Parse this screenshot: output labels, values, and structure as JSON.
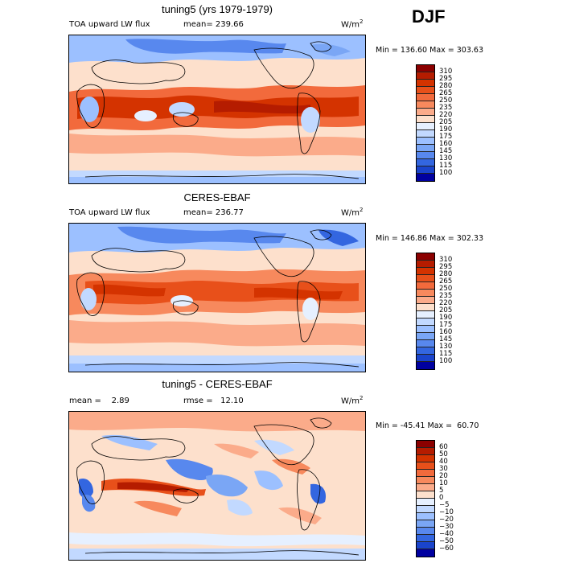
{
  "season": "DJF",
  "panels": [
    {
      "title": "tuning5 (yrs 1979-1979)",
      "variable": "TOA upward LW flux",
      "mean_label": "mean= 239.66",
      "units": "W/m",
      "units_exp": "2",
      "minmax": "Min = 136.60 Max = 303.63",
      "colorbar_labels": [
        "310",
        "295",
        "280",
        "265",
        "250",
        "235",
        "220",
        "205",
        "190",
        "175",
        "160",
        "145",
        "130",
        "115",
        "100"
      ],
      "colors": [
        "#8b0000",
        "#b51c00",
        "#d43300",
        "#e8501a",
        "#f26a3c",
        "#f7895d",
        "#fbab8a",
        "#fde0cc",
        "#e6f0ff",
        "#c2d9ff",
        "#9cc0ff",
        "#7aa6f5",
        "#5888ee",
        "#3366e0",
        "#1a44cc",
        "#0000a0"
      ]
    },
    {
      "title": "CERES-EBAF",
      "variable": "TOA upward LW flux",
      "mean_label": "mean= 236.77",
      "units": "W/m",
      "units_exp": "2",
      "minmax": "Min = 146.86 Max = 302.33",
      "colorbar_labels": [
        "310",
        "295",
        "280",
        "265",
        "250",
        "235",
        "220",
        "205",
        "190",
        "175",
        "160",
        "145",
        "130",
        "115",
        "100"
      ],
      "colors": [
        "#8b0000",
        "#b51c00",
        "#d43300",
        "#e8501a",
        "#f26a3c",
        "#f7895d",
        "#fbab8a",
        "#fde0cc",
        "#e6f0ff",
        "#c2d9ff",
        "#9cc0ff",
        "#7aa6f5",
        "#5888ee",
        "#3366e0",
        "#1a44cc",
        "#0000a0"
      ]
    },
    {
      "title": "tuning5 - CERES-EBAF",
      "mean_label": "mean =    2.89",
      "rmse_label": "rmse =   12.10",
      "units": "W/m",
      "units_exp": "2",
      "minmax": "Min = -45.41 Max =  60.70",
      "colorbar_labels": [
        "60",
        "50",
        "40",
        "30",
        "20",
        "10",
        "5",
        "0",
        "−5",
        "−10",
        "−20",
        "−30",
        "−40",
        "−50",
        "−60"
      ],
      "colors": [
        "#8b0000",
        "#b51c00",
        "#d43300",
        "#e8501a",
        "#f26a3c",
        "#f7895d",
        "#fbab8a",
        "#fde0cc",
        "#e6f0ff",
        "#c2d9ff",
        "#9cc0ff",
        "#7aa6f5",
        "#5888ee",
        "#3366e0",
        "#1a44cc",
        "#0000a0"
      ]
    }
  ]
}
